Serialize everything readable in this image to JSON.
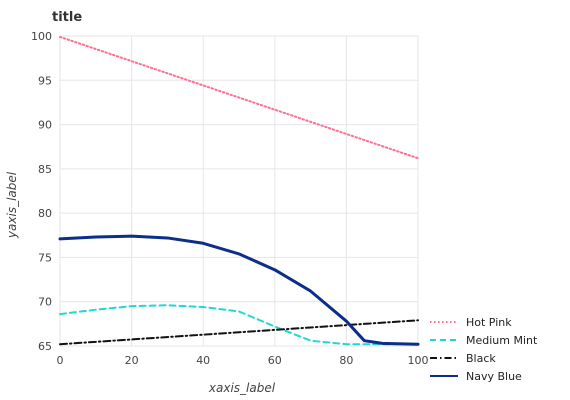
{
  "chart_data": {
    "type": "line",
    "title": "title",
    "xlabel": "xaxis_label",
    "ylabel": "yaxis_label",
    "xlim": [
      0,
      100
    ],
    "ylim": [
      65,
      100
    ],
    "x_ticks": [
      0,
      20,
      40,
      60,
      80,
      100
    ],
    "y_ticks": [
      65,
      70,
      75,
      80,
      85,
      90,
      95,
      100
    ],
    "grid": true,
    "legend_position": "bottom-right",
    "series": [
      {
        "name": "Hot Pink",
        "color": "#ff6f91",
        "dash": "dotted",
        "x": [
          0,
          100
        ],
        "y": [
          99.9,
          86.2
        ]
      },
      {
        "name": "Medium Mint",
        "color": "#22d8d2",
        "dash": "dashed",
        "x": [
          0,
          10,
          20,
          30,
          40,
          50,
          60,
          70,
          80,
          90,
          100
        ],
        "y": [
          68.6,
          69.1,
          69.5,
          69.6,
          69.4,
          68.9,
          67.2,
          65.6,
          65.2,
          65.2,
          65.2
        ]
      },
      {
        "name": "Black",
        "color": "#111111",
        "dash": "dashdot",
        "x": [
          0,
          100
        ],
        "y": [
          65.2,
          67.9
        ]
      },
      {
        "name": "Navy Blue",
        "color": "#0b2e8a",
        "dash": "solid",
        "x": [
          0,
          10,
          20,
          30,
          40,
          50,
          60,
          70,
          80,
          85,
          90,
          100
        ],
        "y": [
          77.1,
          77.3,
          77.4,
          77.2,
          76.6,
          75.4,
          73.6,
          71.2,
          67.8,
          65.6,
          65.3,
          65.2
        ]
      }
    ]
  }
}
